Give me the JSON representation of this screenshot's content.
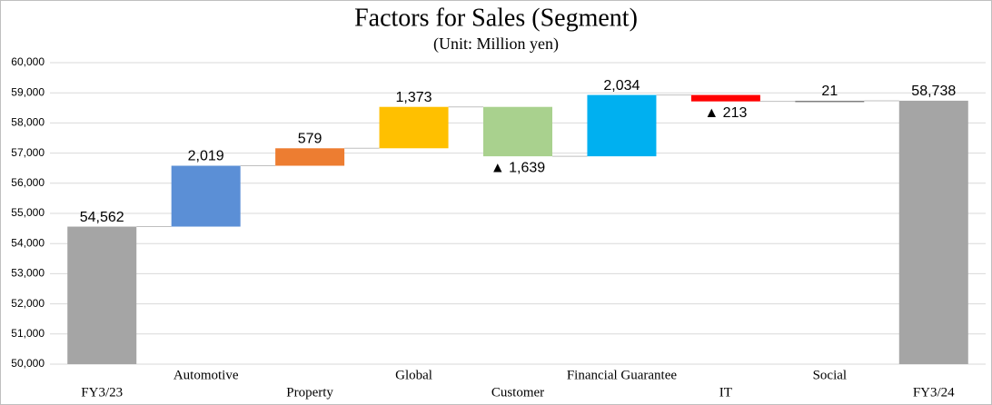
{
  "chart_data": {
    "type": "waterfall",
    "title": "Factors for Sales (Segment)",
    "subtitle": "(Unit: Million yen)",
    "categories": [
      "FY3/23",
      "Automotive",
      "Property",
      "Global",
      "Customer",
      "Financial Guarantee",
      "IT",
      "Social",
      "FY3/24"
    ],
    "values": [
      54562,
      2019,
      579,
      1373,
      -1639,
      2034,
      -213,
      21,
      58738
    ],
    "value_labels": [
      "54,562",
      "2,019",
      "579",
      "1,373",
      "▲ 1,639",
      "2,034",
      "▲ 213",
      "21",
      "58,738"
    ],
    "totals": [
      true,
      false,
      false,
      false,
      false,
      false,
      false,
      false,
      true
    ],
    "colors": [
      "#a5a5a5",
      "#5b8fd6",
      "#ed7d31",
      "#ffc000",
      "#a9d18e",
      "#00b0f0",
      "#ff0000",
      "#7f7f7f",
      "#a5a5a5"
    ],
    "ylim": [
      50000,
      60000
    ],
    "yticks": [
      {
        "value": 50000,
        "label": "50,000"
      },
      {
        "value": 51000,
        "label": "51,000"
      },
      {
        "value": 52000,
        "label": "52,000"
      },
      {
        "value": 53000,
        "label": "53,000"
      },
      {
        "value": 54000,
        "label": "54,000"
      },
      {
        "value": 55000,
        "label": "55,000"
      },
      {
        "value": 56000,
        "label": "56,000"
      },
      {
        "value": 57000,
        "label": "57,000"
      },
      {
        "value": 58000,
        "label": "58,000"
      },
      {
        "value": 59000,
        "label": "59,000"
      },
      {
        "value": 60000,
        "label": "60,000"
      }
    ],
    "grid": true
  }
}
